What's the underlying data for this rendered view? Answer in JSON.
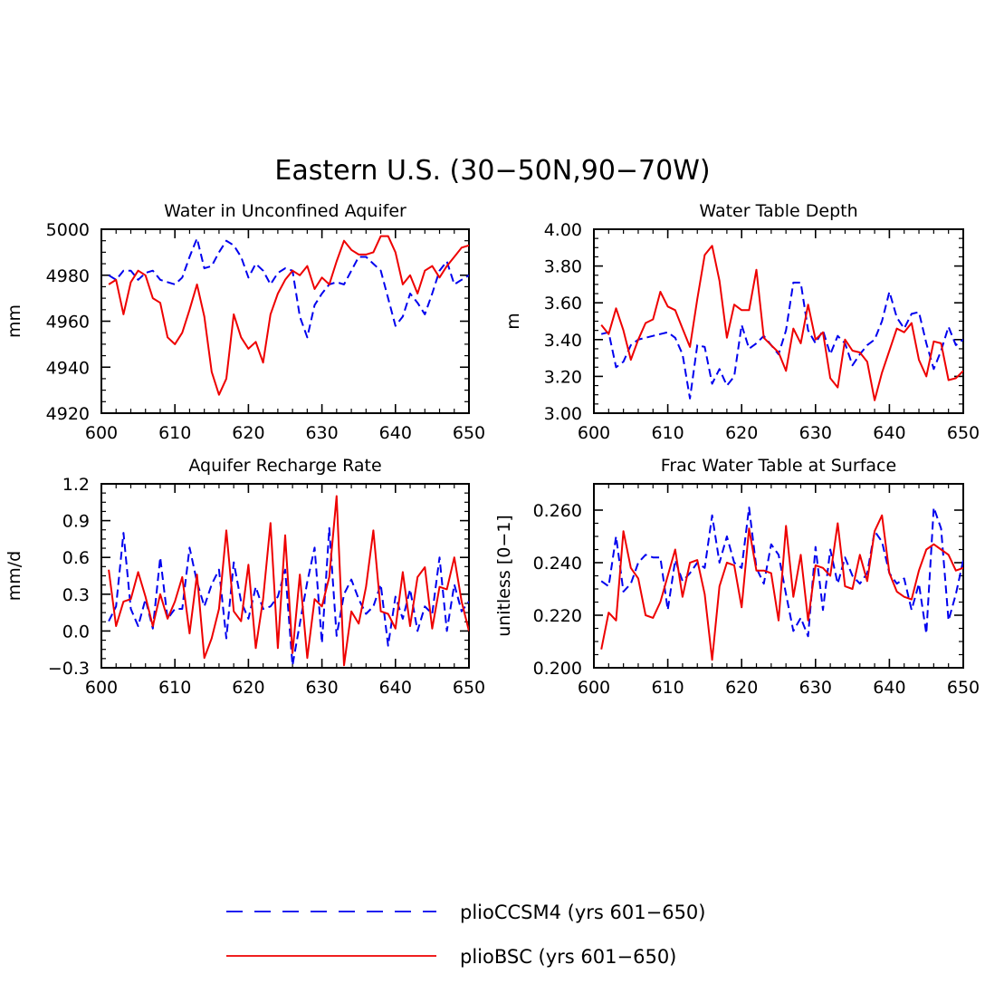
{
  "figure_title": "Eastern U.S. (30−50N,90−70W)",
  "colors": {
    "series_a": "#0000ee",
    "series_b": "#ee0000",
    "axis": "#000000"
  },
  "legend": [
    {
      "label": "plioCCSM4 (yrs 601−650)",
      "style": "dashed",
      "color": "#0000ee"
    },
    {
      "label": "plioBSC (yrs 601−650)",
      "style": "solid",
      "color": "#ee0000"
    }
  ],
  "chart_data": [
    {
      "type": "line",
      "title": "Water in Unconfined Aquifer",
      "ylabel": "mm",
      "xlim": [
        600,
        650
      ],
      "ylim": [
        4920,
        5000
      ],
      "xticks": [
        600,
        610,
        620,
        630,
        640,
        650
      ],
      "xtick_labels": [
        "600",
        "610",
        "620",
        "630",
        "640",
        "650"
      ],
      "yticks": [
        4920,
        4940,
        4960,
        4980,
        5000
      ],
      "ytick_labels": [
        "4920",
        "4940",
        "4960",
        "4980",
        "5000"
      ],
      "x": [
        601,
        602,
        603,
        604,
        605,
        606,
        607,
        608,
        609,
        610,
        611,
        612,
        613,
        614,
        615,
        616,
        617,
        618,
        619,
        620,
        621,
        622,
        623,
        624,
        625,
        626,
        627,
        628,
        629,
        630,
        631,
        632,
        633,
        634,
        635,
        636,
        637,
        638,
        639,
        640,
        641,
        642,
        643,
        644,
        645,
        646,
        647,
        648,
        649,
        650
      ],
      "series": [
        {
          "style": "dashed",
          "values": [
            4980,
            4978,
            4982,
            4982,
            4978,
            4981,
            4982,
            4978,
            4977,
            4976,
            4979,
            4988,
            4996,
            4983,
            4984,
            4990,
            4995,
            4993,
            4988,
            4979,
            4985,
            4982,
            4976,
            4981,
            4983,
            4982,
            4962,
            4953,
            4967,
            4972,
            4976,
            4977,
            4976,
            4982,
            4988,
            4988,
            4985,
            4982,
            4970,
            4958,
            4962,
            4972,
            4968,
            4963,
            4972,
            4982,
            4986,
            4976,
            4978,
            4980
          ]
        },
        {
          "style": "solid",
          "values": [
            4976,
            4978,
            4963,
            4977,
            4982,
            4980,
            4970,
            4968,
            4953,
            4950,
            4955,
            4965,
            4976,
            4962,
            4938,
            4928,
            4935,
            4963,
            4953,
            4948,
            4951,
            4942,
            4963,
            4972,
            4978,
            4982,
            4980,
            4984,
            4974,
            4979,
            4976,
            4986,
            4995,
            4991,
            4989,
            4989,
            4990,
            4997,
            4997,
            4990,
            4976,
            4980,
            4972,
            4982,
            4984,
            4979,
            4984,
            4988,
            4992,
            4993
          ]
        }
      ]
    },
    {
      "type": "line",
      "title": "Water Table Depth",
      "ylabel": "m",
      "xlim": [
        600,
        650
      ],
      "ylim": [
        3.0,
        4.0
      ],
      "xticks": [
        600,
        610,
        620,
        630,
        640,
        650
      ],
      "xtick_labels": [
        "600",
        "610",
        "620",
        "630",
        "640",
        "650"
      ],
      "yticks": [
        3.0,
        3.2,
        3.4,
        3.6,
        3.8,
        4.0
      ],
      "ytick_labels": [
        "3.00",
        "3.20",
        "3.40",
        "3.60",
        "3.80",
        "4.00"
      ],
      "x": [
        601,
        602,
        603,
        604,
        605,
        606,
        607,
        608,
        609,
        610,
        611,
        612,
        613,
        614,
        615,
        616,
        617,
        618,
        619,
        620,
        621,
        622,
        623,
        624,
        625,
        626,
        627,
        628,
        629,
        630,
        631,
        632,
        633,
        634,
        635,
        636,
        637,
        638,
        639,
        640,
        641,
        642,
        643,
        644,
        645,
        646,
        647,
        648,
        649,
        650
      ],
      "series": [
        {
          "style": "dashed",
          "values": [
            3.43,
            3.44,
            3.25,
            3.28,
            3.37,
            3.4,
            3.41,
            3.42,
            3.43,
            3.44,
            3.41,
            3.32,
            3.08,
            3.37,
            3.36,
            3.16,
            3.24,
            3.15,
            3.2,
            3.48,
            3.35,
            3.38,
            3.42,
            3.37,
            3.32,
            3.45,
            3.71,
            3.71,
            3.45,
            3.38,
            3.45,
            3.32,
            3.42,
            3.38,
            3.26,
            3.32,
            3.37,
            3.4,
            3.5,
            3.66,
            3.52,
            3.46,
            3.54,
            3.55,
            3.38,
            3.24,
            3.34,
            3.47,
            3.37,
            3.4
          ]
        },
        {
          "style": "solid",
          "values": [
            3.48,
            3.43,
            3.57,
            3.45,
            3.29,
            3.4,
            3.49,
            3.51,
            3.66,
            3.58,
            3.56,
            3.46,
            3.36,
            3.62,
            3.86,
            3.91,
            3.72,
            3.41,
            3.59,
            3.56,
            3.56,
            3.78,
            3.41,
            3.37,
            3.33,
            3.23,
            3.46,
            3.38,
            3.59,
            3.4,
            3.44,
            3.19,
            3.14,
            3.4,
            3.34,
            3.33,
            3.28,
            3.07,
            3.22,
            3.34,
            3.46,
            3.44,
            3.49,
            3.29,
            3.2,
            3.39,
            3.38,
            3.18,
            3.19,
            3.23
          ]
        }
      ]
    },
    {
      "type": "line",
      "title": "Aquifer Recharge Rate",
      "ylabel": "mm/d",
      "xlim": [
        600,
        650
      ],
      "ylim": [
        -0.3,
        1.2
      ],
      "xticks": [
        600,
        610,
        620,
        630,
        640,
        650
      ],
      "xtick_labels": [
        "600",
        "610",
        "620",
        "630",
        "640",
        "650"
      ],
      "yticks": [
        -0.3,
        0.0,
        0.3,
        0.6,
        0.9,
        1.2
      ],
      "ytick_labels": [
        "−0.3",
        "0.0",
        "0.3",
        "0.6",
        "0.9",
        "1.2"
      ],
      "x": [
        601,
        602,
        603,
        604,
        605,
        606,
        607,
        608,
        609,
        610,
        611,
        612,
        613,
        614,
        615,
        616,
        617,
        618,
        619,
        620,
        621,
        622,
        623,
        624,
        625,
        626,
        627,
        628,
        629,
        630,
        631,
        632,
        633,
        634,
        635,
        636,
        637,
        638,
        639,
        640,
        641,
        642,
        643,
        644,
        645,
        646,
        647,
        648,
        649,
        650
      ],
      "series": [
        {
          "style": "dashed",
          "values": [
            0.08,
            0.2,
            0.8,
            0.18,
            0.04,
            0.26,
            0.02,
            0.6,
            0.1,
            0.18,
            0.18,
            0.68,
            0.4,
            0.2,
            0.38,
            0.5,
            -0.06,
            0.56,
            0.24,
            0.1,
            0.36,
            0.18,
            0.2,
            0.28,
            0.5,
            -0.28,
            0.06,
            0.4,
            0.68,
            -0.1,
            0.84,
            -0.04,
            0.3,
            0.42,
            0.26,
            0.14,
            0.2,
            0.38,
            -0.12,
            0.28,
            0.1,
            0.34,
            0.0,
            0.2,
            0.14,
            0.6,
            0.0,
            0.38,
            0.16,
            0.24
          ]
        },
        {
          "style": "solid",
          "values": [
            0.5,
            0.04,
            0.24,
            0.26,
            0.48,
            0.28,
            0.04,
            0.3,
            0.1,
            0.24,
            0.44,
            -0.02,
            0.46,
            -0.22,
            -0.06,
            0.18,
            0.82,
            0.16,
            0.08,
            0.54,
            -0.14,
            0.26,
            0.88,
            -0.14,
            0.78,
            -0.18,
            0.46,
            -0.22,
            0.26,
            0.2,
            0.44,
            1.1,
            -0.28,
            0.16,
            0.06,
            0.36,
            0.82,
            0.16,
            0.14,
            0.02,
            0.48,
            0.04,
            0.44,
            0.52,
            0.02,
            0.36,
            0.34,
            0.6,
            0.24,
            0.0
          ]
        }
      ]
    },
    {
      "type": "line",
      "title": "Frac Water Table at Surface",
      "ylabel": "unitless [0−1]",
      "xlim": [
        600,
        650
      ],
      "ylim": [
        0.2,
        0.27
      ],
      "xticks": [
        600,
        610,
        620,
        630,
        640,
        650
      ],
      "xtick_labels": [
        "600",
        "610",
        "620",
        "630",
        "640",
        "650"
      ],
      "yticks": [
        0.2,
        0.22,
        0.24,
        0.26
      ],
      "ytick_labels": [
        "0.200",
        "0.220",
        "0.240",
        "0.260"
      ],
      "x": [
        601,
        602,
        603,
        604,
        605,
        606,
        607,
        608,
        609,
        610,
        611,
        612,
        613,
        614,
        615,
        616,
        617,
        618,
        619,
        620,
        621,
        622,
        623,
        624,
        625,
        626,
        627,
        628,
        629,
        630,
        631,
        632,
        633,
        634,
        635,
        636,
        637,
        638,
        639,
        640,
        641,
        642,
        643,
        644,
        645,
        646,
        647,
        648,
        649,
        650
      ],
      "series": [
        {
          "style": "dashed",
          "values": [
            0.233,
            0.231,
            0.25,
            0.229,
            0.232,
            0.24,
            0.243,
            0.242,
            0.242,
            0.222,
            0.241,
            0.233,
            0.236,
            0.24,
            0.238,
            0.258,
            0.24,
            0.25,
            0.24,
            0.238,
            0.261,
            0.238,
            0.232,
            0.247,
            0.243,
            0.228,
            0.214,
            0.219,
            0.212,
            0.246,
            0.222,
            0.245,
            0.232,
            0.242,
            0.235,
            0.232,
            0.236,
            0.252,
            0.248,
            0.236,
            0.232,
            0.234,
            0.222,
            0.232,
            0.213,
            0.261,
            0.253,
            0.218,
            0.228,
            0.241
          ]
        },
        {
          "style": "solid",
          "values": [
            0.207,
            0.221,
            0.218,
            0.252,
            0.238,
            0.234,
            0.22,
            0.219,
            0.225,
            0.235,
            0.245,
            0.227,
            0.24,
            0.241,
            0.228,
            0.203,
            0.231,
            0.24,
            0.239,
            0.223,
            0.253,
            0.237,
            0.237,
            0.236,
            0.218,
            0.254,
            0.227,
            0.243,
            0.218,
            0.239,
            0.238,
            0.235,
            0.255,
            0.231,
            0.23,
            0.243,
            0.233,
            0.252,
            0.258,
            0.236,
            0.229,
            0.227,
            0.226,
            0.237,
            0.245,
            0.247,
            0.245,
            0.243,
            0.237,
            0.238
          ]
        }
      ]
    }
  ]
}
